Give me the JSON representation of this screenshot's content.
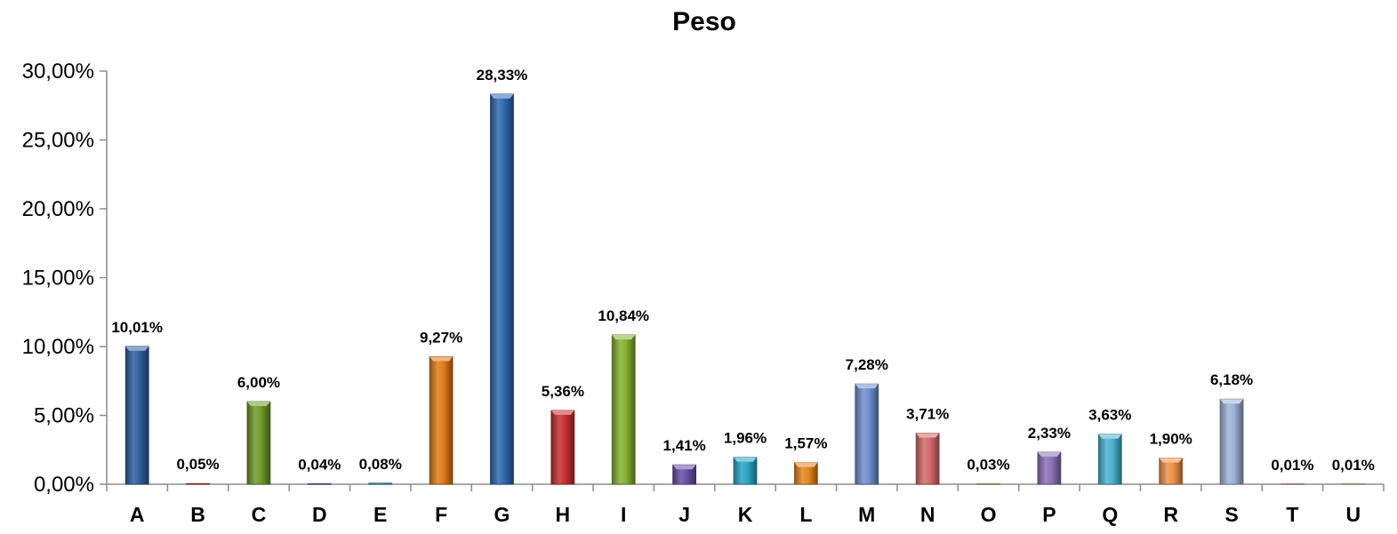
{
  "chart_data": {
    "type": "bar",
    "title": "Peso",
    "xlabel": "",
    "ylabel": "",
    "ylim": [
      0,
      30
    ],
    "yticks": [
      0,
      5,
      10,
      15,
      20,
      25,
      30
    ],
    "ytick_labels": [
      "0,00%",
      "5,00%",
      "10,00%",
      "15,00%",
      "20,00%",
      "25,00%",
      "30,00%"
    ],
    "grid": false,
    "legend": "none",
    "categories": [
      "A",
      "B",
      "C",
      "D",
      "E",
      "F",
      "G",
      "H",
      "I",
      "J",
      "K",
      "L",
      "M",
      "N",
      "O",
      "P",
      "Q",
      "R",
      "S",
      "T",
      "U"
    ],
    "values": [
      10.01,
      0.05,
      6.0,
      0.04,
      0.08,
      9.27,
      28.33,
      5.36,
      10.84,
      1.41,
      1.96,
      1.57,
      7.28,
      3.71,
      0.03,
      2.33,
      3.63,
      1.9,
      6.18,
      0.01,
      0.01
    ],
    "data_labels": [
      "10,01%",
      "0,05%",
      "6,00%",
      "0,04%",
      "0,08%",
      "9,27%",
      "28,33%",
      "5,36%",
      "10,84%",
      "1,41%",
      "1,96%",
      "1,57%",
      "7,28%",
      "3,71%",
      "0,03%",
      "2,33%",
      "3,63%",
      "1,90%",
      "6,18%",
      "0,01%",
      "0,01%"
    ],
    "colors": [
      "#2e5f9e",
      "#c0392b",
      "#6f9a2a",
      "#6a4a9e",
      "#2a9ec0",
      "#e07b1a",
      "#2e6ab0",
      "#c73030",
      "#86b332",
      "#6b4fa6",
      "#2aa6c8",
      "#e8861f",
      "#6f8fcf",
      "#d56b6b",
      "#98bf5a",
      "#8c72b8",
      "#4bb3d1",
      "#f0924a",
      "#9eb2d9",
      "#e9a5a5",
      "#c8d9a5"
    ]
  }
}
